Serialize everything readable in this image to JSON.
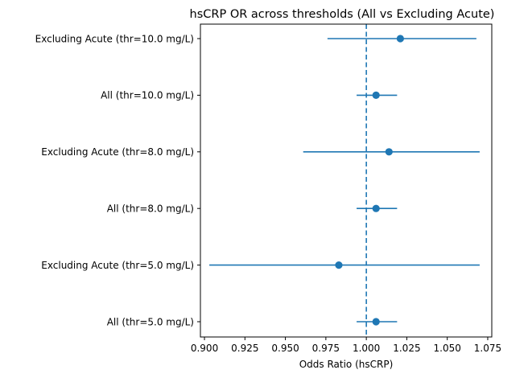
{
  "chart_data": {
    "type": "scatter",
    "subtype": "forest-plot",
    "title": "hsCRP OR across thresholds (All vs Excluding Acute)",
    "xlabel": "Odds Ratio (hsCRP)",
    "ylabel": "",
    "xlim": [
      0.8975,
      1.0775
    ],
    "xticks": [
      "0.900",
      "0.925",
      "0.950",
      "0.975",
      "1.000",
      "1.025",
      "1.050",
      "1.075"
    ],
    "xtick_values": [
      0.9,
      0.925,
      0.95,
      0.975,
      1.0,
      1.025,
      1.05,
      1.075
    ],
    "reference_line": {
      "x": 1.0,
      "style": "dashed"
    },
    "grid": false,
    "color": "#1f77b4",
    "points": [
      {
        "label": "Excluding Acute (thr=10.0 mg/L)",
        "or": 1.021,
        "ci_low": 0.976,
        "ci_high": 1.068
      },
      {
        "label": "All (thr=10.0 mg/L)",
        "or": 1.006,
        "ci_low": 0.994,
        "ci_high": 1.019
      },
      {
        "label": "Excluding Acute (thr=8.0 mg/L)",
        "or": 1.014,
        "ci_low": 0.961,
        "ci_high": 1.07
      },
      {
        "label": "All (thr=8.0 mg/L)",
        "or": 1.006,
        "ci_low": 0.994,
        "ci_high": 1.019
      },
      {
        "label": "Excluding Acute (thr=5.0 mg/L)",
        "or": 0.983,
        "ci_low": 0.903,
        "ci_high": 1.07
      },
      {
        "label": "All (thr=5.0 mg/L)",
        "or": 1.006,
        "ci_low": 0.994,
        "ci_high": 1.019
      }
    ]
  }
}
